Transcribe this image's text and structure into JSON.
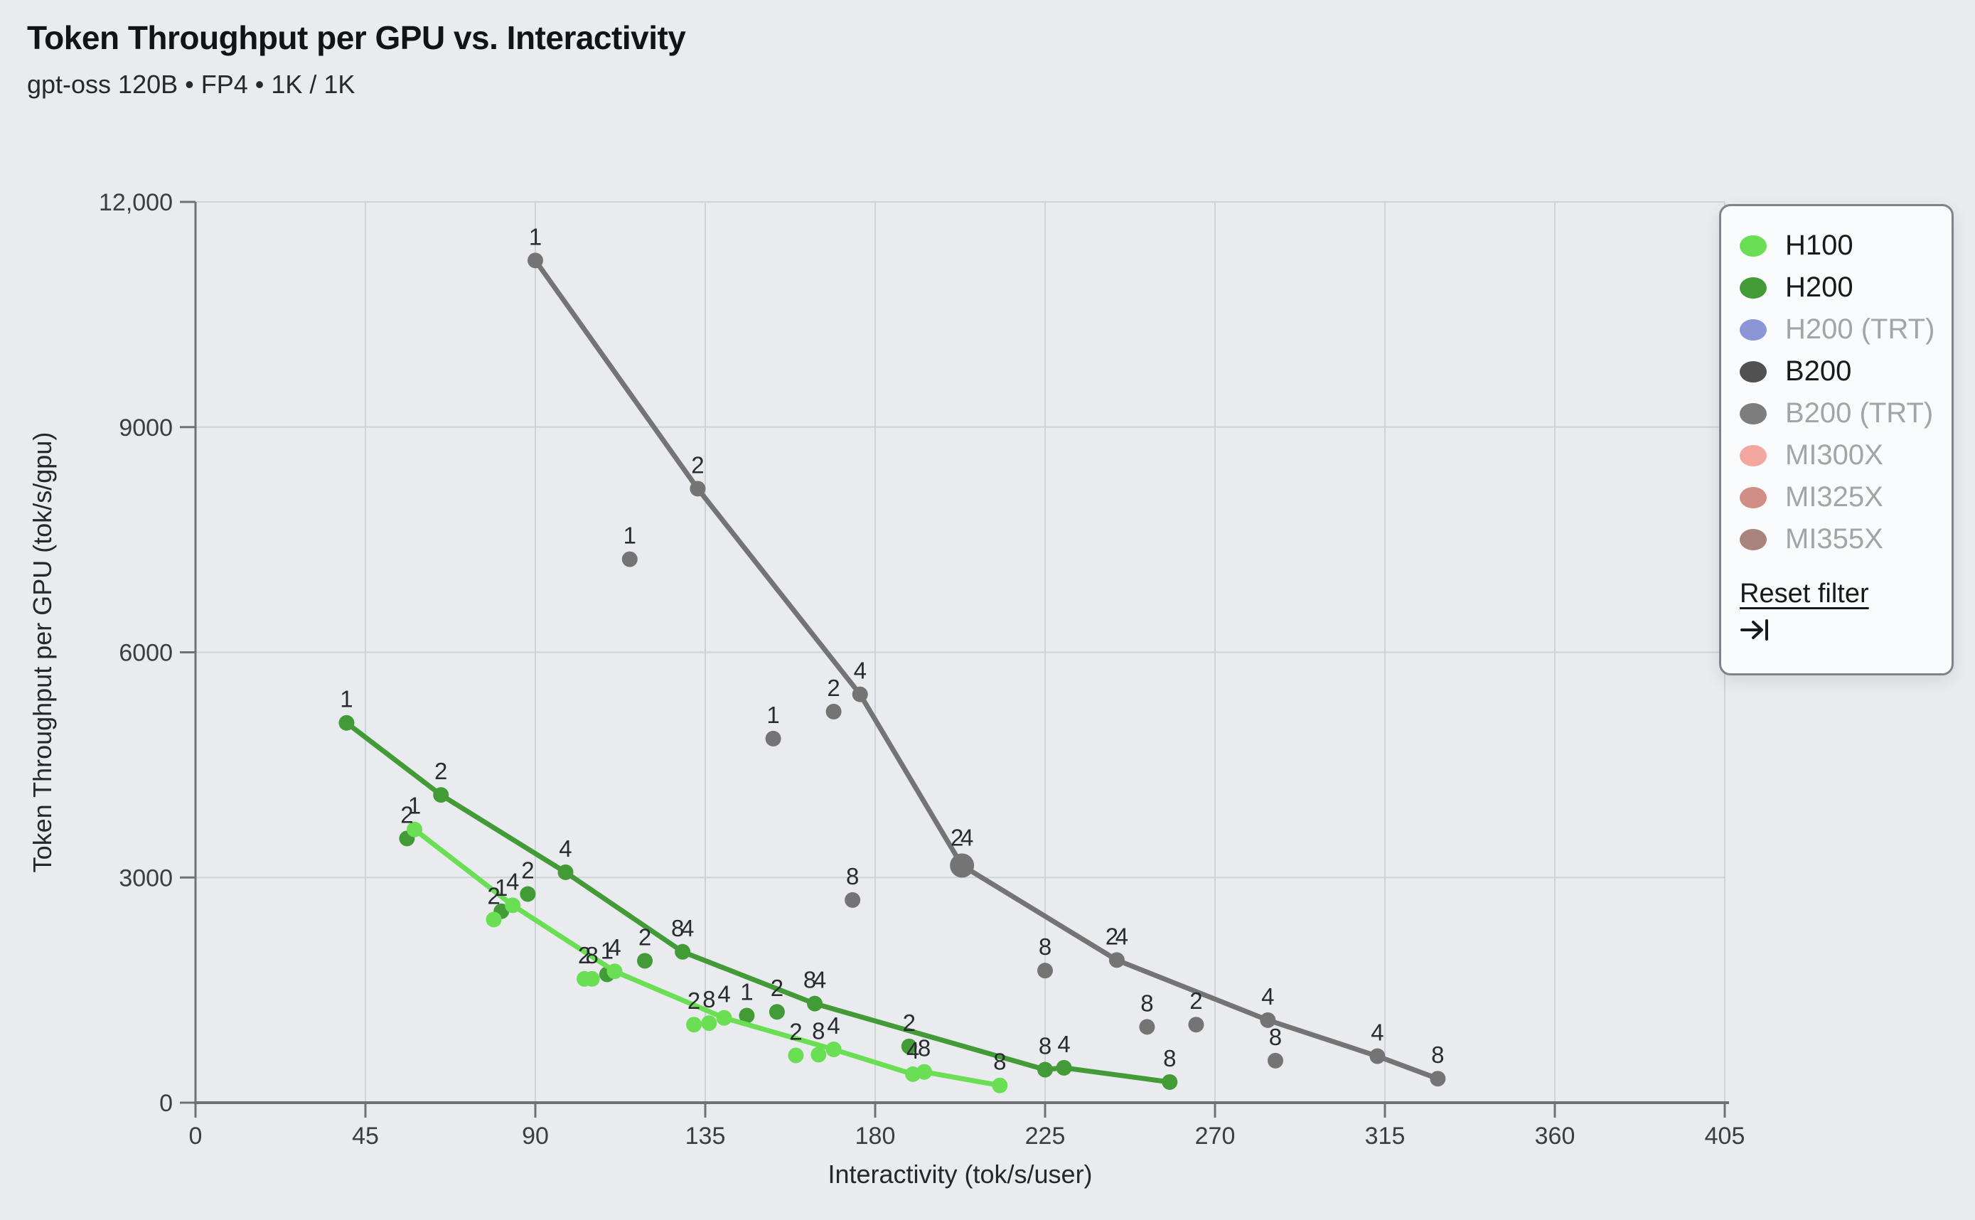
{
  "header": {
    "title": "Token Throughput per GPU vs. Interactivity",
    "subtitle": "gpt-oss 120B • FP4 • 1K / 1K"
  },
  "chart_data": {
    "type": "scatter",
    "title": "Token Throughput per GPU vs. Interactivity",
    "subtitle": "gpt-oss 120B • FP4 • 1K / 1K",
    "xlabel": "Interactivity (tok/s/user)",
    "ylabel": "Token Throughput per GPU (tok/s/gpu)",
    "xlim": [
      0,
      405
    ],
    "ylim": [
      0,
      12000
    ],
    "grid": true,
    "legend_position": "top-right",
    "point_label_meaning": "GPU count / parallelism per config",
    "xticks": [
      0,
      45,
      90,
      135,
      180,
      225,
      270,
      315,
      360,
      405
    ],
    "yticks": [
      {
        "value": 0,
        "label": "0"
      },
      {
        "value": 3000,
        "label": "3000"
      },
      {
        "value": 6000,
        "label": "6000"
      },
      {
        "value": 9000,
        "label": "9000"
      },
      {
        "value": 12000,
        "label": "12,000"
      }
    ],
    "series": [
      {
        "name": "H200",
        "color": "#429b37",
        "line": [
          {
            "x": 40,
            "y": 5060,
            "labels": [
              "1"
            ]
          },
          {
            "x": 65,
            "y": 4100,
            "labels": [
              "2"
            ]
          },
          {
            "x": 98,
            "y": 3070,
            "labels": [
              "4"
            ]
          },
          {
            "x": 129,
            "y": 2010,
            "labels": [
              "8",
              "4"
            ]
          },
          {
            "x": 164,
            "y": 1320,
            "labels": [
              "8",
              "4"
            ]
          },
          {
            "x": 225,
            "y": 440,
            "labels": [
              "8"
            ]
          },
          {
            "x": 230,
            "y": 465,
            "labels": [
              "4"
            ]
          },
          {
            "x": 258,
            "y": 275,
            "labels": [
              "8"
            ]
          }
        ],
        "scatter": [
          {
            "x": 56,
            "y": 3520,
            "labels": [
              "2"
            ]
          },
          {
            "x": 81,
            "y": 2550,
            "labels": [
              "1"
            ]
          },
          {
            "x": 88,
            "y": 2780,
            "labels": [
              "2"
            ]
          },
          {
            "x": 109,
            "y": 1710,
            "labels": [
              "1"
            ]
          },
          {
            "x": 119,
            "y": 1890,
            "labels": [
              "2"
            ]
          },
          {
            "x": 146,
            "y": 1160,
            "labels": [
              "1"
            ]
          },
          {
            "x": 154,
            "y": 1210,
            "labels": [
              "2"
            ]
          },
          {
            "x": 189,
            "y": 750,
            "labels": [
              "2"
            ]
          }
        ]
      },
      {
        "name": "H100",
        "color": "#6bdf53",
        "line": [
          {
            "x": 58,
            "y": 3640,
            "labels": [
              "1"
            ]
          },
          {
            "x": 84,
            "y": 2630,
            "labels": [
              "4"
            ]
          },
          {
            "x": 111,
            "y": 1750,
            "labels": [
              "4"
            ]
          },
          {
            "x": 140,
            "y": 1130,
            "labels": [
              "4"
            ]
          },
          {
            "x": 169,
            "y": 710,
            "labels": [
              "4"
            ]
          },
          {
            "x": 190,
            "y": 380,
            "labels": [
              "4"
            ]
          },
          {
            "x": 193,
            "y": 410,
            "labels": [
              "8"
            ]
          },
          {
            "x": 213,
            "y": 230,
            "labels": [
              "8"
            ]
          }
        ],
        "scatter": [
          {
            "x": 79,
            "y": 2440,
            "labels": [
              "2"
            ]
          },
          {
            "x": 103,
            "y": 1650,
            "labels": [
              "2"
            ]
          },
          {
            "x": 105,
            "y": 1650,
            "labels": [
              "8"
            ]
          },
          {
            "x": 132,
            "y": 1040,
            "labels": [
              "2"
            ]
          },
          {
            "x": 136,
            "y": 1060,
            "labels": [
              "8"
            ]
          },
          {
            "x": 159,
            "y": 630,
            "labels": [
              "2"
            ]
          },
          {
            "x": 165,
            "y": 640,
            "labels": [
              "8"
            ]
          }
        ]
      },
      {
        "name": "B200",
        "color": "#747474",
        "line": [
          {
            "x": 90,
            "y": 11220,
            "labels": [
              "1"
            ]
          },
          {
            "x": 133,
            "y": 8180,
            "labels": [
              "2"
            ]
          },
          {
            "x": 176,
            "y": 5440,
            "labels": [
              "4"
            ]
          },
          {
            "x": 203,
            "y": 3160,
            "labels": [
              "2",
              "4"
            ],
            "big": true
          },
          {
            "x": 244,
            "y": 1900,
            "labels": [
              "2",
              "4"
            ]
          },
          {
            "x": 284,
            "y": 1100,
            "labels": [
              "4"
            ]
          },
          {
            "x": 313,
            "y": 620,
            "labels": [
              "4"
            ]
          },
          {
            "x": 329,
            "y": 320,
            "labels": [
              "8"
            ]
          }
        ],
        "scatter": [
          {
            "x": 115,
            "y": 7240,
            "labels": [
              "1"
            ]
          },
          {
            "x": 153,
            "y": 4850,
            "labels": [
              "1"
            ]
          },
          {
            "x": 169,
            "y": 5210,
            "labels": [
              "2"
            ]
          },
          {
            "x": 174,
            "y": 2700,
            "labels": [
              "8"
            ]
          },
          {
            "x": 225,
            "y": 1760,
            "labels": [
              "8"
            ]
          },
          {
            "x": 252,
            "y": 1010,
            "labels": [
              "8"
            ]
          },
          {
            "x": 265,
            "y": 1040,
            "labels": [
              "2"
            ]
          },
          {
            "x": 286,
            "y": 560,
            "labels": [
              "8"
            ]
          }
        ]
      }
    ]
  },
  "legend": {
    "items": [
      {
        "label": "H100",
        "color": "#6bdf53",
        "active": true
      },
      {
        "label": "H200",
        "color": "#429b37",
        "active": true
      },
      {
        "label": "H200 (TRT)",
        "color": "#8b96d8",
        "active": false
      },
      {
        "label": "B200",
        "color": "#515151",
        "active": true
      },
      {
        "label": "B200 (TRT)",
        "color": "#7d7d7d",
        "active": false
      },
      {
        "label": "MI300X",
        "color": "#f2a7a1",
        "active": false
      },
      {
        "label": "MI325X",
        "color": "#d18e87",
        "active": false
      },
      {
        "label": "MI355X",
        "color": "#a9837e",
        "active": false
      }
    ],
    "reset_label": "Reset filter",
    "reset_icon": "arrow-to-bar-icon"
  },
  "colors": {
    "background": "#e9ebee",
    "gridline": "#cdd3db",
    "axis": "#6e7176",
    "tick_text": "#3a3d42",
    "point_label_text": "#282b2f",
    "axis_title_text": "#24272c"
  }
}
